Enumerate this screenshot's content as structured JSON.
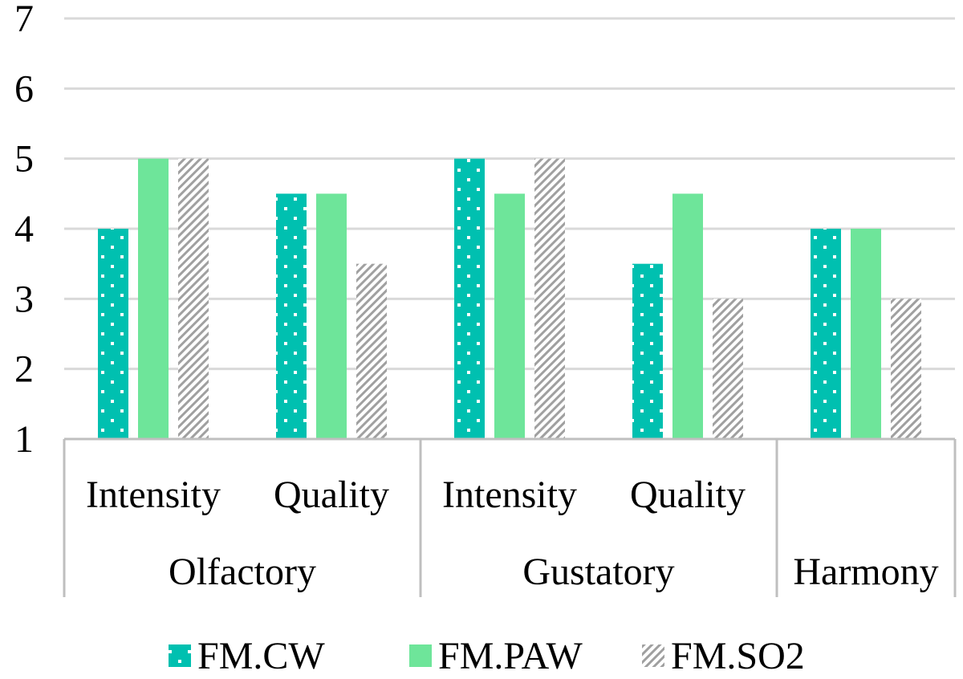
{
  "chart_data": {
    "type": "bar",
    "title": "",
    "xlabel": "",
    "ylabel": "",
    "ylim": [
      1,
      7
    ],
    "yticks": [
      1,
      2,
      3,
      4,
      5,
      6,
      7
    ],
    "grid": true,
    "legend_position": "bottom",
    "groups": [
      {
        "label": "Olfactory",
        "categories": [
          "Intensity",
          "Quality"
        ]
      },
      {
        "label": "Gustatory",
        "categories": [
          "Intensity",
          "Quality"
        ]
      },
      {
        "label": "Harmony",
        "categories": [
          ""
        ]
      }
    ],
    "series": [
      {
        "name": "FM.CW",
        "color": "#00c0b0",
        "pattern": "dots",
        "values": [
          4,
          4.5,
          5,
          3.5,
          4
        ]
      },
      {
        "name": "FM.PAW",
        "color": "#6ee59a",
        "pattern": "solid",
        "values": [
          5,
          4.5,
          4.5,
          4.5,
          4
        ]
      },
      {
        "name": "FM.SO2",
        "color": "#a0a0a0",
        "pattern": "hatch",
        "values": [
          5,
          3.5,
          5,
          3,
          3
        ]
      }
    ]
  }
}
